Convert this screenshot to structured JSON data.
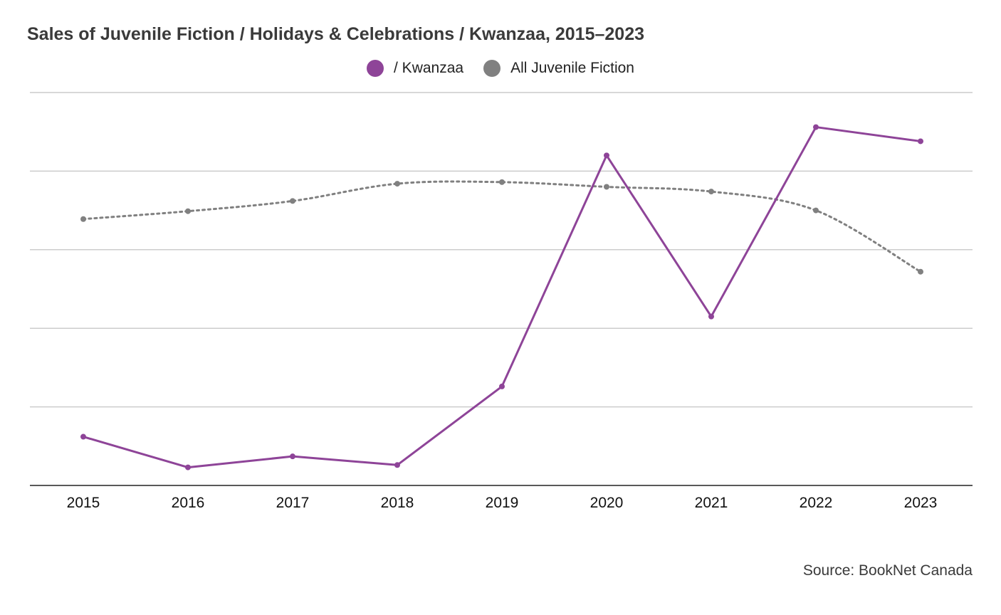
{
  "chart_data": {
    "type": "line",
    "title": "Sales of Juvenile Fiction / Holidays & Celebrations / Kwanzaa, 2015–2023",
    "categories": [
      "2015",
      "2016",
      "2017",
      "2018",
      "2019",
      "2020",
      "2021",
      "2022",
      "2023"
    ],
    "series": [
      {
        "name": "/ Kwanzaa",
        "color": "#8e4498",
        "style": "solid",
        "values": [
          62,
          23,
          37,
          26,
          126,
          420,
          215,
          456,
          438
        ]
      },
      {
        "name": "All Juvenile Fiction",
        "color": "#808080",
        "style": "dotted",
        "values": [
          339,
          349,
          362,
          384,
          386,
          380,
          374,
          350,
          272
        ]
      }
    ],
    "ylim": [
      0,
      500
    ],
    "y_gridlines": [
      0,
      100,
      200,
      300,
      400,
      500
    ],
    "y_tick_labels_shown": false,
    "grid": true,
    "legend_position": "top-center"
  },
  "source": "Source: BookNet Canada"
}
